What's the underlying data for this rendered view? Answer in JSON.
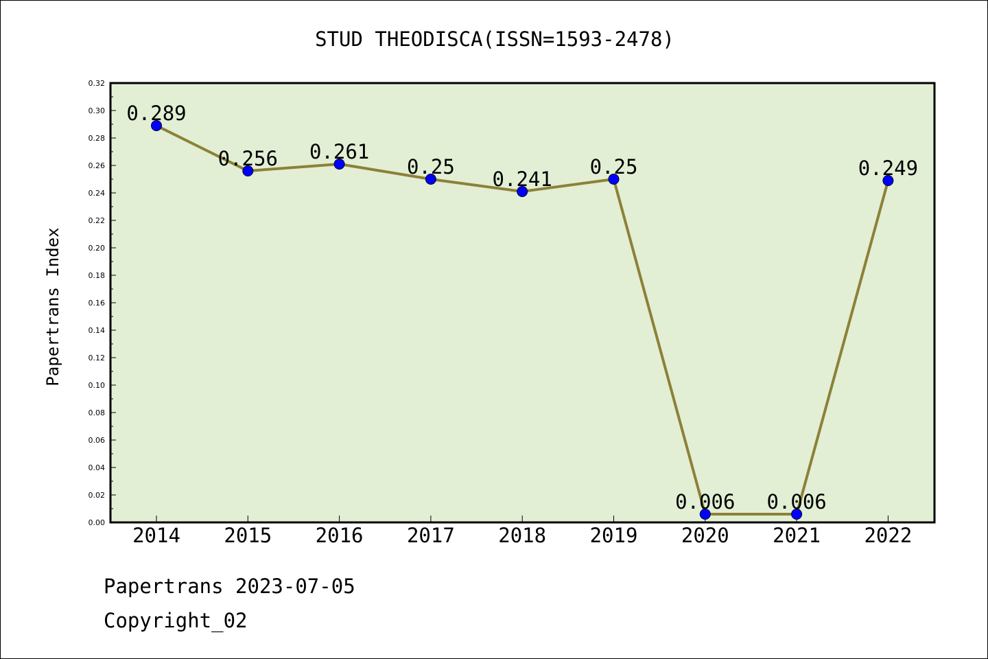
{
  "footer": {
    "date_line": "Papertrans 2023-07-05",
    "copyright": "Copyright_02"
  },
  "colors": {
    "plot_background": "#e2efd5",
    "line": "#8c8138",
    "marker": "#0000ff",
    "axis": "#000000"
  },
  "chart_data": {
    "type": "line",
    "title": "STUD THEODISCA(ISSN=1593-2478)",
    "xlabel": "",
    "ylabel": "Papertrans Index",
    "categories": [
      "2014",
      "2015",
      "2016",
      "2017",
      "2018",
      "2019",
      "2020",
      "2021",
      "2022"
    ],
    "series": [
      {
        "values": [
          0.289,
          0.256,
          0.261,
          0.25,
          0.241,
          0.25,
          0.006,
          0.006,
          0.249
        ],
        "data_labels": [
          "0.289",
          "0.256",
          "0.261",
          "0.25",
          "0.241",
          "0.25",
          "0.006",
          "0.006",
          "0.249"
        ]
      }
    ],
    "ylim": [
      0,
      0.32
    ],
    "y_ticks": [
      "0.00",
      "0.02",
      "0.04",
      "0.06",
      "0.08",
      "0.10",
      "0.12",
      "0.14",
      "0.16",
      "0.18",
      "0.20",
      "0.22",
      "0.24",
      "0.26",
      "0.28",
      "0.30",
      "0.32"
    ],
    "grid": false,
    "legend": "none"
  }
}
